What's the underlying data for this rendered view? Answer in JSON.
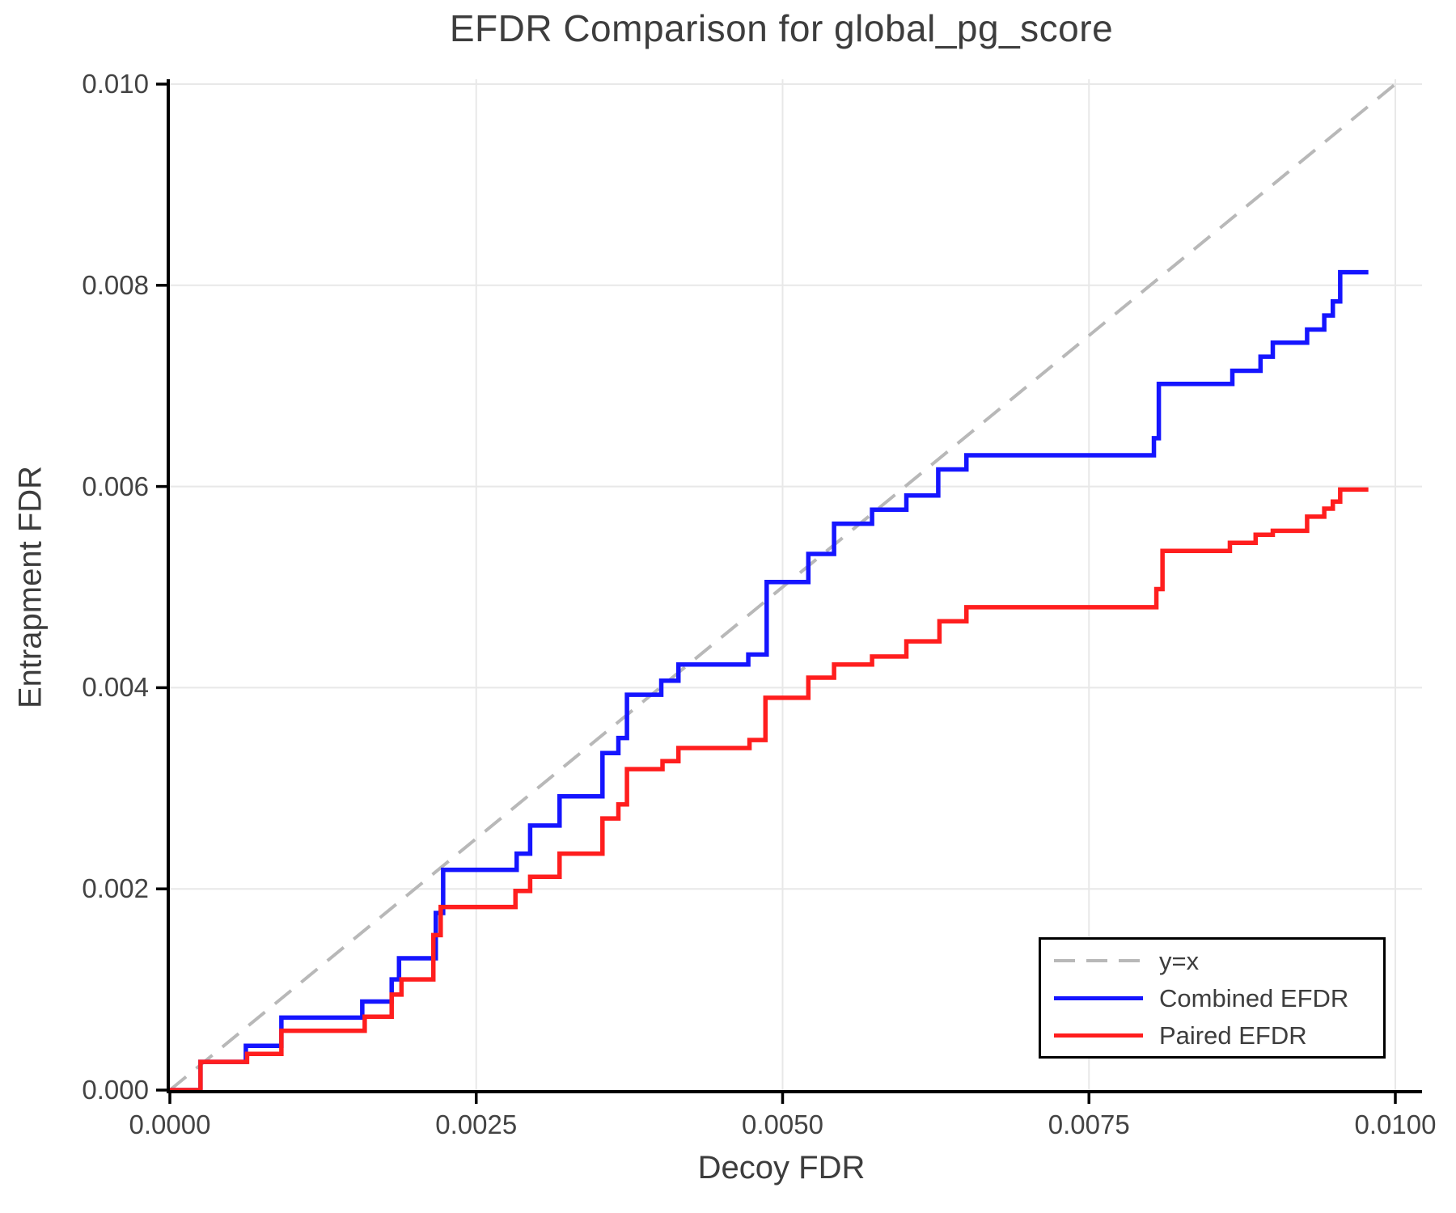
{
  "title": "EFDR Comparison for global_pg_score",
  "x_axis_label": "Decoy FDR",
  "y_axis_label": "Entrapment FDR",
  "colors": {
    "combined": "#1515ff",
    "paired": "#ff1e1e",
    "reference": "#b8b8b8",
    "grid": "#e8e8e8",
    "axis": "#000000",
    "text": "#3d3d3d"
  },
  "legend": {
    "items": [
      {
        "label": "y=x",
        "style": "dashed",
        "color": "#b8b8b8"
      },
      {
        "label": "Combined EFDR",
        "style": "solid",
        "color": "#1515ff"
      },
      {
        "label": "Paired EFDR",
        "style": "solid",
        "color": "#ff1e1e"
      }
    ]
  },
  "chart_data": {
    "type": "line",
    "title": "EFDR Comparison for global_pg_score",
    "xlabel": "Decoy FDR",
    "ylabel": "Entrapment FDR",
    "xlim": [
      0,
      0.01
    ],
    "ylim": [
      0,
      0.01
    ],
    "grid": true,
    "legend_position": "lower right",
    "x_ticks": [
      {
        "value": 0.0,
        "label": "0.0000"
      },
      {
        "value": 0.0025,
        "label": "0.0025"
      },
      {
        "value": 0.005,
        "label": "0.0050"
      },
      {
        "value": 0.0075,
        "label": "0.0075"
      },
      {
        "value": 0.01,
        "label": "0.0100"
      }
    ],
    "y_ticks": [
      {
        "value": 0.0,
        "label": "0.000"
      },
      {
        "value": 0.002,
        "label": "0.002"
      },
      {
        "value": 0.004,
        "label": "0.004"
      },
      {
        "value": 0.006,
        "label": "0.006"
      },
      {
        "value": 0.008,
        "label": "0.008"
      },
      {
        "value": 0.01,
        "label": "0.010"
      }
    ],
    "series": [
      {
        "name": "y=x",
        "kind": "reference",
        "style": "dashed",
        "color": "#b8b8b8",
        "points": [
          [
            0,
            0
          ],
          [
            0.01,
            0.01
          ]
        ]
      },
      {
        "name": "Combined EFDR",
        "kind": "step-post",
        "style": "solid",
        "color": "#1515ff",
        "points": [
          [
            0.0,
            0.0
          ],
          [
            0.00025,
            0.00028
          ],
          [
            0.00062,
            0.00044
          ],
          [
            0.00091,
            0.00072
          ],
          [
            0.00157,
            0.00088
          ],
          [
            0.00181,
            0.0011
          ],
          [
            0.00187,
            0.00131
          ],
          [
            0.00217,
            0.00176
          ],
          [
            0.00223,
            0.00219
          ],
          [
            0.00283,
            0.00235
          ],
          [
            0.00294,
            0.00263
          ],
          [
            0.00318,
            0.00292
          ],
          [
            0.00353,
            0.00335
          ],
          [
            0.00366,
            0.0035
          ],
          [
            0.00373,
            0.00393
          ],
          [
            0.00401,
            0.00407
          ],
          [
            0.00415,
            0.00423
          ],
          [
            0.00472,
            0.00433
          ],
          [
            0.00487,
            0.00505
          ],
          [
            0.00521,
            0.00533
          ],
          [
            0.00542,
            0.00563
          ],
          [
            0.00573,
            0.00577
          ],
          [
            0.00601,
            0.00591
          ],
          [
            0.00627,
            0.00617
          ],
          [
            0.0065,
            0.00631
          ],
          [
            0.00803,
            0.00648
          ],
          [
            0.00807,
            0.00702
          ],
          [
            0.00867,
            0.00715
          ],
          [
            0.0089,
            0.00729
          ],
          [
            0.009,
            0.00743
          ],
          [
            0.00928,
            0.00756
          ],
          [
            0.00942,
            0.0077
          ],
          [
            0.00949,
            0.00784
          ],
          [
            0.00955,
            0.00813
          ],
          [
            0.00978,
            0.00813
          ]
        ]
      },
      {
        "name": "Paired EFDR",
        "kind": "step-post",
        "style": "solid",
        "color": "#ff1e1e",
        "points": [
          [
            0.0,
            0.0
          ],
          [
            0.00025,
            0.00028
          ],
          [
            0.00063,
            0.00036
          ],
          [
            0.00091,
            0.00059
          ],
          [
            0.00159,
            0.00073
          ],
          [
            0.00181,
            0.00095
          ],
          [
            0.00189,
            0.0011
          ],
          [
            0.00215,
            0.00154
          ],
          [
            0.00221,
            0.00182
          ],
          [
            0.00282,
            0.00198
          ],
          [
            0.00294,
            0.00212
          ],
          [
            0.00318,
            0.00235
          ],
          [
            0.00353,
            0.0027
          ],
          [
            0.00366,
            0.00284
          ],
          [
            0.00373,
            0.00319
          ],
          [
            0.00402,
            0.00327
          ],
          [
            0.00415,
            0.0034
          ],
          [
            0.00473,
            0.00348
          ],
          [
            0.00486,
            0.0039
          ],
          [
            0.00521,
            0.0041
          ],
          [
            0.00542,
            0.00423
          ],
          [
            0.00573,
            0.00431
          ],
          [
            0.00601,
            0.00446
          ],
          [
            0.00628,
            0.00466
          ],
          [
            0.0065,
            0.0048
          ],
          [
            0.00805,
            0.00498
          ],
          [
            0.0081,
            0.00536
          ],
          [
            0.00865,
            0.00544
          ],
          [
            0.00886,
            0.00552
          ],
          [
            0.009,
            0.00556
          ],
          [
            0.00928,
            0.0057
          ],
          [
            0.00942,
            0.00578
          ],
          [
            0.00949,
            0.00585
          ],
          [
            0.00955,
            0.00597
          ],
          [
            0.00978,
            0.00597
          ]
        ]
      }
    ]
  }
}
